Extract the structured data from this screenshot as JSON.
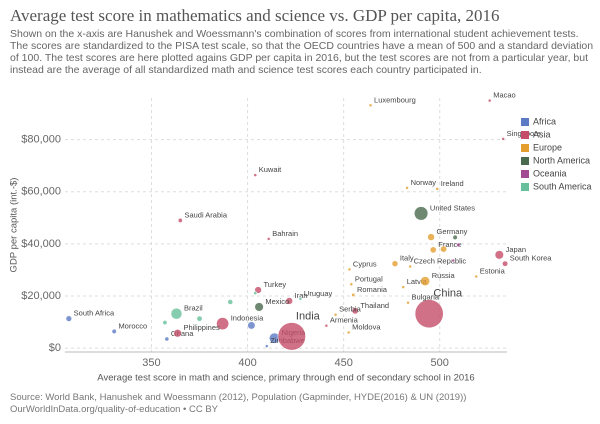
{
  "chart_data": {
    "type": "scatter",
    "title": "Average test score in mathematics and science vs. GDP per capita, 2016",
    "subtitle": "Shown on the x-axis are Hanushek and Woessmann's combination of scores from international student achievement tests. The scores are standardized to the PISA test scale, so that the OECD countries have a mean of 500 and a standard deviation of 100. The test scores are here plotted agains GDP per capita in 2016, but the test scores are not from a particular year, but instead are the average of all standardized math and science test scores each country participated in.",
    "x_label": "Average test score in math and science, primary through end of secondary school in 2016",
    "y_label": "GDP per capita (int.-$)",
    "source": "Source: World Bank, Hanushek and Woessmann (2012), Population (Gapminder, HYDE(2016) & UN (2019))",
    "footer": "OurWorldInData.org/quality-of-education • CC BY",
    "xlim": [
      305,
      535
    ],
    "xticks": [
      350,
      400,
      450,
      500
    ],
    "ylim": [
      -1500,
      96000
    ],
    "yticks": [
      {
        "value": 0,
        "label": "$0"
      },
      {
        "value": 20000,
        "label": "$20,000"
      },
      {
        "value": 40000,
        "label": "$40,000"
      },
      {
        "value": 60000,
        "label": "$60,000"
      },
      {
        "value": 80000,
        "label": "$80,000"
      }
    ],
    "grid": true,
    "legend": "right",
    "series": [
      {
        "name": "Africa",
        "color": "#5b7bc4",
        "x": [
          307,
          330.6,
          358,
          414,
          410,
          402
        ],
        "values": [
          11300,
          6400,
          3500,
          3800,
          750,
          8700
        ],
        "sizes": [
          56,
          35,
          28,
          186,
          16,
          95
        ],
        "labels": [
          "South Africa",
          "Morocco",
          "Ghana",
          "Nigeria",
          "Zimbabwe",
          null
        ]
      },
      {
        "name": "Asia",
        "color": "#c44e69",
        "x": [
          423,
          494.5,
          404,
          365,
          411,
          387,
          363.6,
          421.7,
          405.5,
          456,
          441,
          531,
          534,
          526,
          533
        ],
        "values": [
          4500,
          13200,
          66400,
          49000,
          41900,
          9400,
          5700,
          18100,
          22300,
          14300,
          8600,
          35800,
          32400,
          95000,
          80300
        ],
        "sizes": [
          1324,
          1379,
          4,
          32,
          1.4,
          261,
          103,
          80,
          79,
          69,
          3,
          127,
          51,
          0.6,
          5.6
        ],
        "labels": [
          "India",
          "China",
          "Kuwait",
          "Saudi Arabia",
          "Bahrain",
          "Indonesia",
          "Philippines",
          "Iran",
          "Turkey",
          "Thailand",
          "Armenia",
          "Japan",
          "South Korea",
          "Macao",
          "Singapore"
        ]
      },
      {
        "name": "Europe",
        "color": "#e39e2e",
        "x": [
          464,
          483,
          498.7,
          495.5,
          496.6,
          476.7,
          453,
          454,
          484.6,
          481,
          492.4,
          519,
          455,
          445.8,
          483.5,
          452.6,
          502
        ],
        "values": [
          93200,
          61500,
          61100,
          42600,
          37700,
          32400,
          30200,
          24500,
          31300,
          23400,
          25700,
          27500,
          20400,
          12800,
          17400,
          6000,
          38000
        ],
        "sizes": [
          0.6,
          5,
          4.7,
          82,
          65,
          60,
          1.2,
          10,
          10.6,
          2,
          144,
          1.3,
          20,
          7,
          7,
          3.5,
          66
        ],
        "labels": [
          "Luxembourg",
          "Norway",
          "Ireland",
          "Germany",
          "France",
          "Italy",
          "Cyprus",
          "Portugal",
          "Czech Republic",
          "Latvia",
          "Russia",
          "Estonia",
          "Romania",
          "Serbia",
          "Bulgaria",
          "Moldova",
          null
        ]
      },
      {
        "name": "North America",
        "color": "#4a6a4e",
        "x": [
          490.3,
          406,
          508
        ],
        "values": [
          51700,
          15800,
          42500
        ],
        "sizes": [
          323,
          128,
          36
        ],
        "labels": [
          "United States",
          "Mexico",
          null
        ]
      },
      {
        "name": "Oceania",
        "color": "#a24a93",
        "x": [
          509.7,
          507
        ],
        "values": [
          39600,
          33600
        ],
        "sizes": [
          24,
          4.7
        ],
        "labels": [
          null,
          null
        ]
      },
      {
        "name": "South America",
        "color": "#68bf9b",
        "x": [
          363,
          427.5,
          404,
          391,
          375,
          357
        ],
        "values": [
          13200,
          18900,
          21100,
          17700,
          11300,
          9800
        ],
        "sizes": [
          208,
          3.4,
          18,
          44,
          49,
          32
        ],
        "labels": [
          "Brazil",
          "Uruguay",
          null,
          null,
          null,
          null
        ]
      }
    ]
  }
}
